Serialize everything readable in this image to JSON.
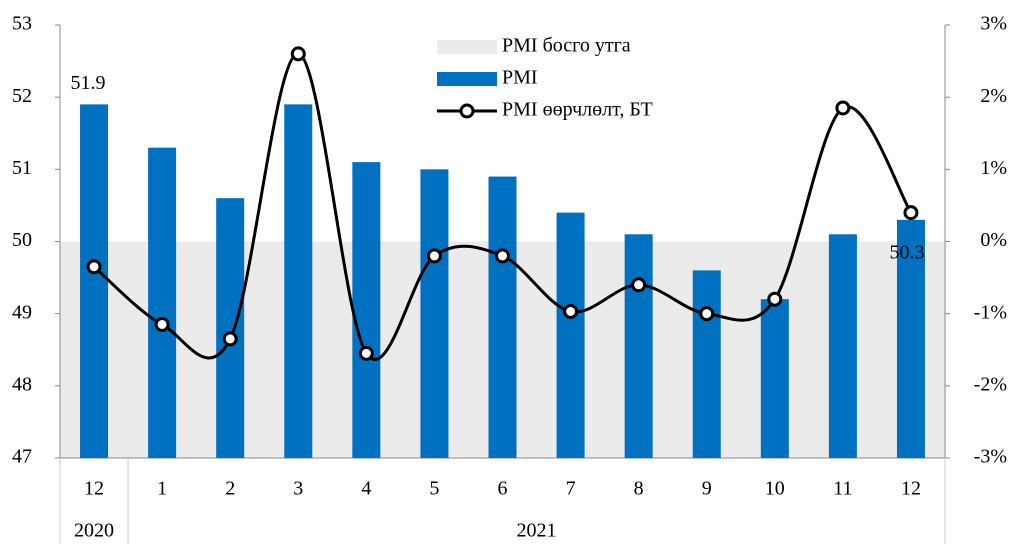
{
  "chart_data": {
    "type": "bar_line",
    "categories": [
      "12",
      "1",
      "2",
      "3",
      "4",
      "5",
      "6",
      "7",
      "8",
      "9",
      "10",
      "11",
      "12"
    ],
    "groups": [
      {
        "label": "2020",
        "count": 1
      },
      {
        "label": "2021",
        "count": 12
      }
    ],
    "series": [
      {
        "name": "PMI босго утга",
        "type": "area",
        "color": "#ebebeb",
        "values": [
          50,
          50,
          50,
          50,
          50,
          50,
          50,
          50,
          50,
          50,
          50,
          50,
          50
        ]
      },
      {
        "name": "PMI",
        "type": "bar",
        "color": "#0070c0",
        "values": [
          51.9,
          51.3,
          50.6,
          51.9,
          51.1,
          51.0,
          50.9,
          50.4,
          50.1,
          49.6,
          49.2,
          50.1,
          50.3
        ],
        "labeled": [
          0,
          12
        ]
      },
      {
        "name": "PMI өөрчлөлт, БТ",
        "type": "line",
        "color": "#000000",
        "axis": "y2",
        "values": [
          -0.35,
          -1.15,
          -1.35,
          2.6,
          -1.55,
          -0.2,
          -0.2,
          -0.97,
          -0.6,
          -1.0,
          -0.8,
          1.85,
          0.4
        ]
      }
    ],
    "ylim": [
      47,
      53
    ],
    "yticks": [
      47,
      48,
      49,
      50,
      51,
      52,
      53
    ],
    "y2lim": [
      -3,
      3
    ],
    "y2ticks": [
      {
        "value": -3,
        "label": "-3%"
      },
      {
        "value": -2,
        "label": "-2%"
      },
      {
        "value": -1,
        "label": "-1%"
      },
      {
        "value": 0,
        "label": "0%"
      },
      {
        "value": 1,
        "label": "1%"
      },
      {
        "value": 2,
        "label": "2%"
      },
      {
        "value": 3,
        "label": "3%"
      }
    ]
  }
}
